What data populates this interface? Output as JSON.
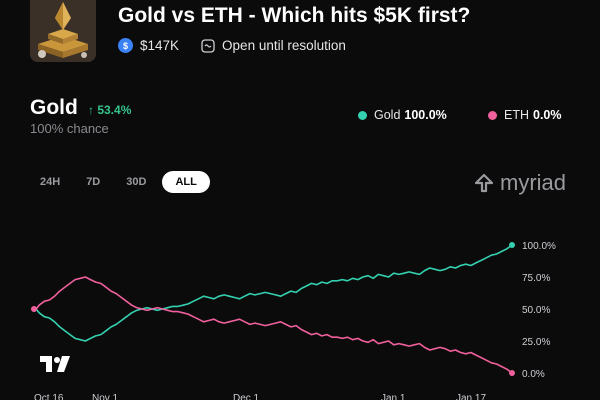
{
  "market": {
    "title": "Gold vs ETH - Which hits $5K first?",
    "volume": "$147K",
    "status": "Open until resolution",
    "thumbnail_icon": "gold-bar-thumbnail"
  },
  "selected_outcome": {
    "name": "Gold",
    "change": "↑ 53.4%",
    "chance": "100% chance"
  },
  "legend": [
    {
      "name": "Gold",
      "value": "100.0%",
      "color": "#34d1b0"
    },
    {
      "name": "ETH",
      "value": "0.0%",
      "color": "#f0609c"
    }
  ],
  "time_tabs": [
    {
      "label": "24H",
      "active": false
    },
    {
      "label": "7D",
      "active": false
    },
    {
      "label": "30D",
      "active": false
    },
    {
      "label": "ALL",
      "active": true
    }
  ],
  "brand": "myriad",
  "chart_data": {
    "type": "line",
    "x_ticks": [
      "Oct 16",
      "Nov 1",
      "Dec 1",
      "Jan 1",
      "Jan 17"
    ],
    "y_ticks": [
      "100.0%",
      "75.0%",
      "50.0%",
      "25.0%",
      "0.0%"
    ],
    "ylim": [
      0,
      100
    ],
    "series": [
      {
        "name": "Gold",
        "color": "#34d1b0",
        "x": [
          0,
          1,
          2,
          3,
          4,
          5,
          6,
          7,
          8,
          9,
          10,
          11,
          12,
          13,
          14,
          15,
          16,
          17,
          18,
          19,
          20,
          21,
          22,
          23,
          24,
          25,
          26,
          27,
          28,
          29,
          30,
          31,
          32,
          33,
          34,
          35,
          36,
          37,
          38,
          39,
          40,
          41,
          42,
          43,
          44,
          45,
          46,
          47,
          48,
          49,
          50,
          51,
          52,
          53,
          54,
          55,
          56,
          57,
          58,
          59,
          60,
          61,
          62,
          63,
          64,
          65,
          66,
          67,
          68,
          69,
          70,
          71,
          72,
          73,
          74,
          75,
          76,
          77,
          78,
          79,
          80,
          81,
          82,
          83,
          84,
          85,
          86,
          87,
          88,
          89,
          90,
          91,
          92,
          93
        ],
        "values": [
          52,
          47,
          44,
          43,
          40,
          36,
          33,
          30,
          27,
          26,
          25,
          27,
          29,
          30,
          33,
          36,
          38,
          41,
          44,
          47,
          49,
          50,
          51,
          50,
          49,
          50,
          51,
          52,
          52,
          53,
          54,
          56,
          58,
          60,
          59,
          58,
          60,
          61,
          60,
          59,
          58,
          60,
          62,
          61,
          62,
          63,
          62,
          61,
          60,
          62,
          64,
          63,
          66,
          68,
          70,
          69,
          71,
          70,
          72,
          72,
          73,
          72,
          74,
          73,
          75,
          76,
          74,
          77,
          76,
          75,
          78,
          77,
          78,
          79,
          78,
          77,
          80,
          82,
          81,
          80,
          81,
          83,
          82,
          84,
          85,
          84,
          86,
          88,
          90,
          92,
          93,
          95,
          97,
          100
        ]
      },
      {
        "name": "ETH",
        "color": "#f0609c",
        "x": [
          0,
          1,
          2,
          3,
          4,
          5,
          6,
          7,
          8,
          9,
          10,
          11,
          12,
          13,
          14,
          15,
          16,
          17,
          18,
          19,
          20,
          21,
          22,
          23,
          24,
          25,
          26,
          27,
          28,
          29,
          30,
          31,
          32,
          33,
          34,
          35,
          36,
          37,
          38,
          39,
          40,
          41,
          42,
          43,
          44,
          45,
          46,
          47,
          48,
          49,
          50,
          51,
          52,
          53,
          54,
          55,
          56,
          57,
          58,
          59,
          60,
          61,
          62,
          63,
          64,
          65,
          66,
          67,
          68,
          69,
          70,
          71,
          72,
          73,
          74,
          75,
          76,
          77,
          78,
          79,
          80,
          81,
          82,
          83,
          84,
          85,
          86,
          87,
          88,
          89,
          90,
          91,
          92,
          93
        ],
        "values": [
          48,
          53,
          56,
          57,
          60,
          64,
          67,
          70,
          73,
          74,
          75,
          73,
          71,
          70,
          67,
          64,
          62,
          59,
          56,
          53,
          51,
          50,
          49,
          50,
          51,
          50,
          49,
          48,
          48,
          47,
          46,
          44,
          42,
          40,
          41,
          42,
          40,
          39,
          40,
          41,
          42,
          40,
          38,
          39,
          38,
          37,
          38,
          39,
          40,
          38,
          36,
          37,
          34,
          32,
          30,
          31,
          29,
          30,
          28,
          28,
          27,
          28,
          26,
          27,
          25,
          24,
          26,
          23,
          24,
          25,
          22,
          23,
          22,
          21,
          22,
          23,
          20,
          18,
          19,
          20,
          19,
          17,
          18,
          16,
          15,
          16,
          14,
          12,
          10,
          8,
          7,
          5,
          3,
          0
        ]
      }
    ]
  }
}
